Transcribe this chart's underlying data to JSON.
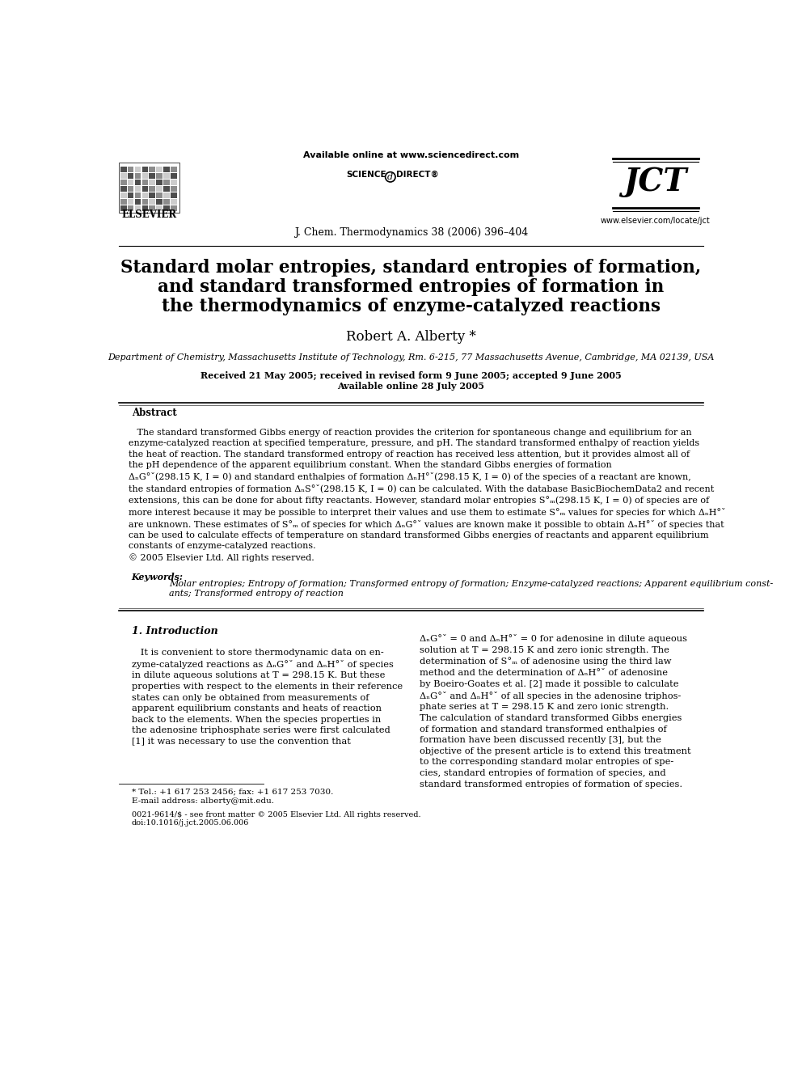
{
  "title_line1": "Standard molar entropies, standard entropies of formation,",
  "title_line2": "and standard transformed entropies of formation in",
  "title_line3": "the thermodynamics of enzyme-catalyzed reactions",
  "author": "Robert A. Alberty *",
  "affiliation": "Department of Chemistry, Massachusetts Institute of Technology, Rm. 6-215, 77 Massachusetts Avenue, Cambridge, MA 02139, USA",
  "received": "Received 21 May 2005; received in revised form 9 June 2005; accepted 9 June 2005",
  "available": "Available online 28 July 2005",
  "journal": "J. Chem. Thermodynamics 38 (2006) 396–404",
  "available_online": "Available online at www.sciencedirect.com",
  "jct_url": "www.elsevier.com/locate/jct",
  "elsevier": "ELSEVIER",
  "abstract_title": "Abstract",
  "keywords_label": "Keywords:",
  "keywords_text": "Molar entropies; Entropy of formation; Transformed entropy of formation; Enzyme-catalyzed reactions; Apparent equilibrium const-\nants; Transformed entropy of reaction",
  "section1_title": "1. Introduction",
  "footnote_tel": "* Tel.: +1 617 253 2456; fax: +1 617 253 7030.",
  "footnote_email": "E-mail address: alberty@mit.edu.",
  "copyright_bottom": "0021-9614/$ - see front matter © 2005 Elsevier Ltd. All rights reserved.",
  "doi": "doi:10.1016/j.jct.2005.06.006",
  "bg_color": "#ffffff",
  "text_color": "#000000"
}
